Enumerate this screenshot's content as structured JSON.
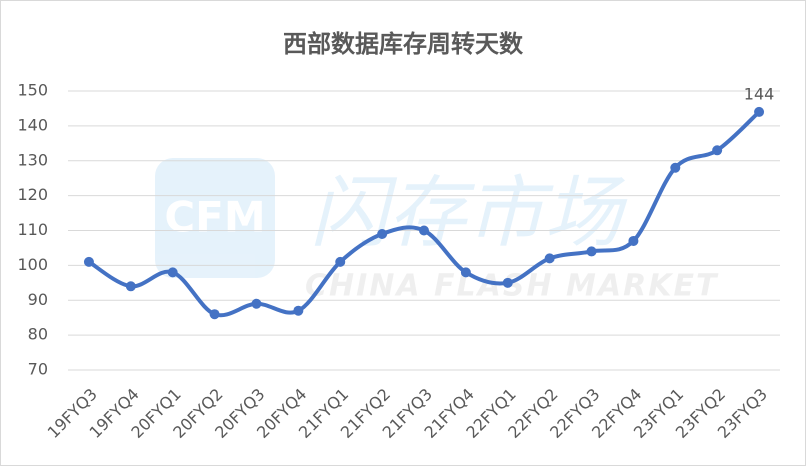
{
  "chart_data": {
    "type": "line",
    "title": "西部数据库存周转天数",
    "categories": [
      "19FYQ3",
      "19FYQ4",
      "20FYQ1",
      "20FYQ2",
      "20FYQ3",
      "20FYQ4",
      "21FYQ1",
      "21FYQ2",
      "21FYQ3",
      "21FYQ4",
      "22FYQ1",
      "22FYQ2",
      "22FYQ3",
      "22FYQ4",
      "23FYQ1",
      "23FYQ2",
      "23FYQ3"
    ],
    "values": [
      101,
      94,
      98,
      86,
      89,
      87,
      101,
      109,
      110,
      98,
      95,
      102,
      104,
      107,
      128,
      133,
      144
    ],
    "value_labels": [
      null,
      null,
      null,
      null,
      null,
      null,
      null,
      null,
      null,
      null,
      null,
      null,
      null,
      null,
      null,
      null,
      "144"
    ],
    "color": "#4472c4",
    "ylim": [
      70,
      150
    ],
    "yticks": [
      70,
      80,
      90,
      100,
      110,
      120,
      130,
      140,
      150
    ],
    "grid": true,
    "smooth": true,
    "watermark": {
      "logo": "CFM",
      "name": "闪存市场",
      "english": "CHINA FLASH MARKET"
    }
  }
}
